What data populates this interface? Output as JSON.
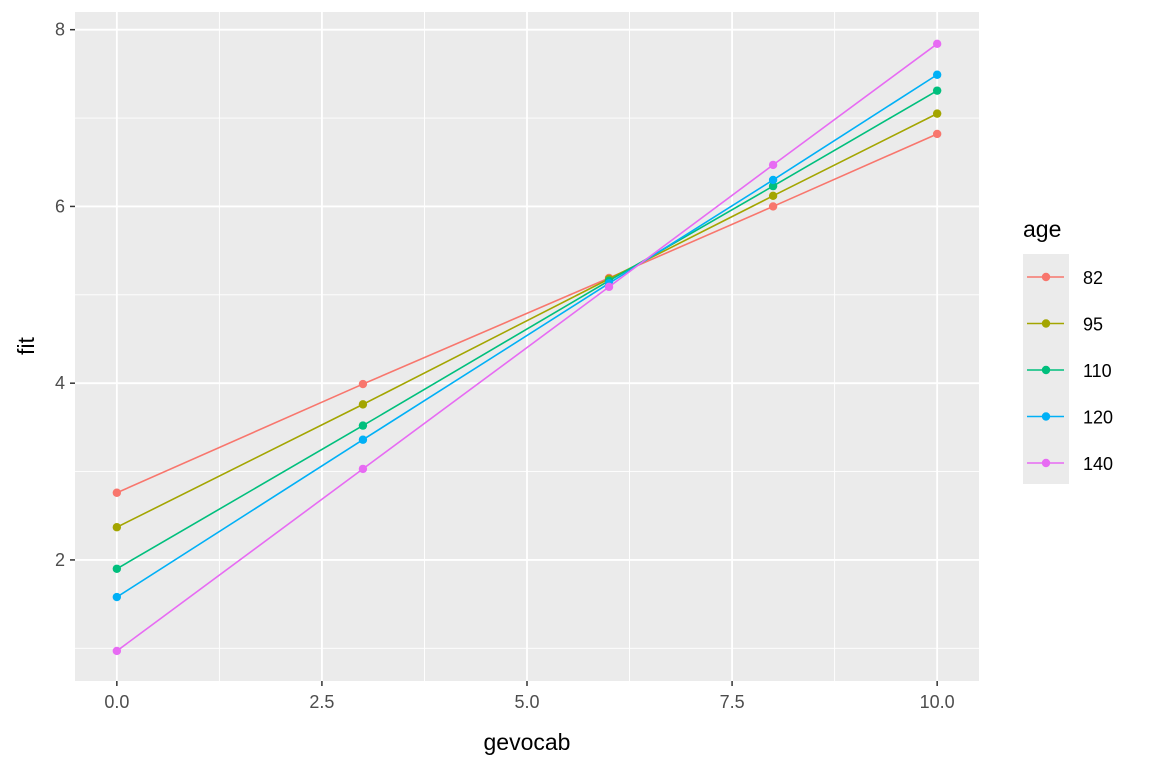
{
  "chart_data": {
    "type": "line",
    "title": "",
    "xlabel": "gevocab",
    "ylabel": "fit",
    "xlim": [
      -0.51,
      10.51
    ],
    "ylim": [
      0.63,
      8.2
    ],
    "xticks": [
      0,
      2.5,
      5,
      7.5,
      10
    ],
    "xtick_labels": [
      "0.0",
      "2.5",
      "5.0",
      "7.5",
      "10.0"
    ],
    "yticks": [
      2,
      4,
      6,
      8
    ],
    "ytick_labels": [
      "2",
      "4",
      "6",
      "8"
    ],
    "grid": true,
    "legend": {
      "title": "age",
      "placement": "right"
    },
    "x": [
      0,
      3,
      6,
      8,
      10
    ],
    "series": [
      {
        "name": "82",
        "color": "#F8766D",
        "values": [
          2.76,
          3.99,
          5.19,
          6.0,
          6.82
        ]
      },
      {
        "name": "95",
        "color": "#A3A500",
        "values": [
          2.37,
          3.76,
          5.18,
          6.12,
          7.05
        ]
      },
      {
        "name": "110",
        "color": "#00BF7D",
        "values": [
          1.9,
          3.52,
          5.16,
          6.23,
          7.31
        ]
      },
      {
        "name": "120",
        "color": "#00B0F6",
        "values": [
          1.58,
          3.36,
          5.13,
          6.3,
          7.49
        ]
      },
      {
        "name": "140",
        "color": "#E76BF3",
        "values": [
          0.97,
          3.03,
          5.09,
          6.47,
          7.84
        ]
      }
    ]
  }
}
